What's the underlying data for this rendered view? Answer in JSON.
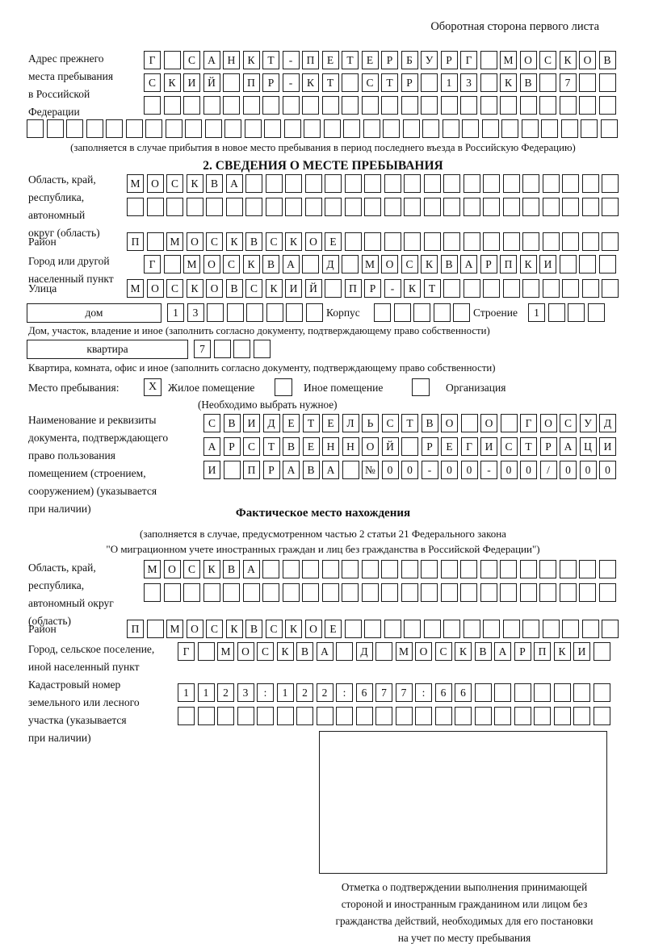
{
  "header_note": "Оборотная сторона первого листа",
  "prev_address": {
    "label_lines": [
      "Адрес прежнего",
      "места пребывания",
      "в Российской",
      "Федерации"
    ],
    "row1": {
      "text": "Г САНКТ-ПЕТЕРБУРГ МОСКОВ",
      "len": 24
    },
    "row2": {
      "text": "СКИЙ ПР-КТ СТР 13 КВ 7",
      "len": 24
    },
    "row3": {
      "text": "",
      "len": 24
    },
    "row4": {
      "text": "",
      "len": 30
    },
    "caption": "(заполняется в случае прибытия в новое место пребывания в период последнего въезда в Российскую Федерацию)"
  },
  "section2": {
    "title": "2. СВЕДЕНИЯ О МЕСТЕ ПРЕБЫВАНИЯ",
    "region": {
      "label_lines": [
        "Область, край,",
        "республика,",
        "автономный",
        "округ (область)"
      ],
      "row1": {
        "text": "МОСКВА",
        "len": 25
      },
      "row2": {
        "text": "",
        "len": 25
      }
    },
    "district": {
      "label": "Район",
      "row": {
        "text": "П МОСКВСКОЕ",
        "len": 25
      }
    },
    "city": {
      "label_lines": [
        "Город или другой",
        "населенный пункт"
      ],
      "row": {
        "text": "Г МОСКВА Д МОСКВАРПКИ",
        "len": 24
      }
    },
    "street": {
      "label": "Улица",
      "row": {
        "text": "МОСКОВСКИЙ ПР-КТ",
        "len": 25
      }
    },
    "house": {
      "box_label": "дом",
      "cells": {
        "text": "13",
        "len": 8
      },
      "korpus_label": "Корпус",
      "korpus_cells": {
        "text": "",
        "len": 5
      },
      "stroenie_label": "Строение",
      "stroenie_cells": {
        "text": "1",
        "len": 4
      },
      "caption": "Дом, участок, владение и иное (заполнить согласно документу, подтверждающему право собственности)"
    },
    "apartment": {
      "box_label": "квартира",
      "cells": {
        "text": "7",
        "len": 4
      },
      "caption": "Квартира, комната, офис и иное (заполнить согласно документу, подтверждающему право собственности)"
    },
    "stay_type": {
      "label": "Место пребывания:",
      "options": [
        {
          "label": "Жилое помещение",
          "mark": "X"
        },
        {
          "label": "Иное помещение",
          "mark": ""
        },
        {
          "label": "Организация",
          "mark": ""
        }
      ],
      "note": "(Необходимо выбрать нужное)"
    },
    "document": {
      "label_lines": [
        "Наименование и реквизиты",
        "документа, подтверждающего",
        "право пользования",
        "помещением (строением,",
        "сооружением) (указывается",
        "при наличии)"
      ],
      "row1": {
        "text": "СВИДЕТЕЛЬСТВО О ГОСУД",
        "len": 21
      },
      "row2": {
        "text": "АРСТВЕННОЙ РЕГИСТРАЦИ",
        "len": 21
      },
      "row3": {
        "text": "И ПРАВА №00-00-00/000",
        "len": 21
      }
    }
  },
  "section3": {
    "title": "Фактическое место нахождения",
    "caption_lines": [
      "(заполняется в случае, предусмотренном частью 2 статьи 21 Федерального закона",
      "\"О миграционном учете иностранных граждан и лиц без гражданства в Российской Федерации\")"
    ],
    "region": {
      "label_lines": [
        "Область, край,",
        "республика,",
        "автономный округ",
        "(область)"
      ],
      "row1": {
        "text": "МОСКВА",
        "len": 24
      },
      "row2": {
        "text": "",
        "len": 24
      }
    },
    "district": {
      "label": "Район",
      "row": {
        "text": "П МОСКВСКОЕ",
        "len": 25
      }
    },
    "city": {
      "label_lines": [
        "Город, сельское поселение,",
        "иной населенный пункт"
      ],
      "row": {
        "text": "Г МОСКВА Д МОСКВАРПКИ",
        "len": 22
      }
    },
    "cadastre": {
      "label_lines": [
        "Кадастровый номер",
        "земельного или лесного",
        "участка (указывается",
        "при наличии)"
      ],
      "row1": {
        "text": "1123:122:677:66",
        "len": 22
      },
      "row2": {
        "text": "",
        "len": 22
      }
    },
    "stamp_caption_lines": [
      "Отметка о подтверждении выполнения принимающей",
      "стороной и иностранным гражданином или лицом без",
      "гражданства действий, необходимых для его постановки",
      "на учет по месту пребывания"
    ]
  }
}
